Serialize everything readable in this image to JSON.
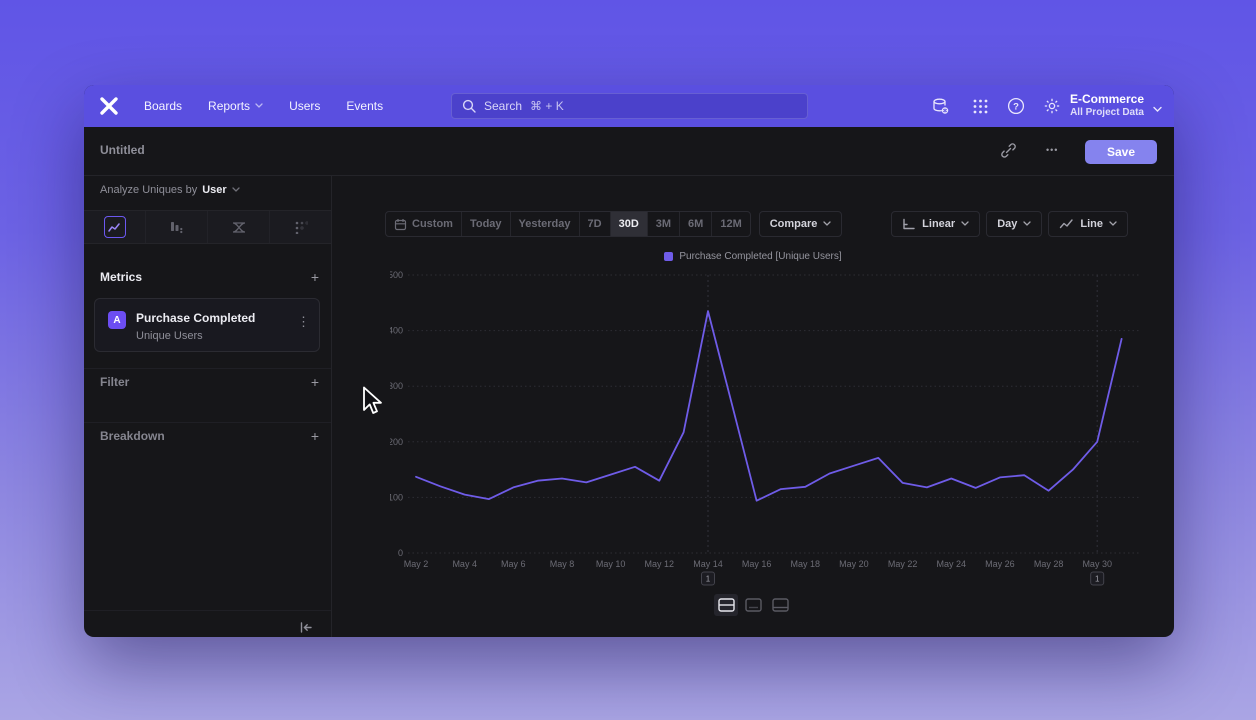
{
  "brand": {
    "nav_purple": "#5a4fe0",
    "accent": "#6f5ce8",
    "save_bg": "#8583ee"
  },
  "topnav": {
    "items": [
      {
        "label": "Boards",
        "dropdown": false
      },
      {
        "label": "Reports",
        "dropdown": true
      },
      {
        "label": "Users",
        "dropdown": false
      },
      {
        "label": "Events",
        "dropdown": false
      }
    ],
    "search_placeholder": "Search",
    "search_shortcut": "⌘ + K",
    "project_name": "E-Commerce",
    "project_scope": "All Project Data"
  },
  "header": {
    "title": "Untitled",
    "save_label": "Save",
    "more_glyph": "•••"
  },
  "sidebar": {
    "analyze_prefix": "Analyze Uniques by",
    "analyze_value": "User",
    "metrics_label": "Metrics",
    "metric_card": {
      "badge": "A",
      "title": "Purchase Completed",
      "subtitle": "Unique Users"
    },
    "filter_label": "Filter",
    "breakdown_label": "Breakdown",
    "plus_glyph": "+",
    "kebab_glyph": "⋮"
  },
  "toolbar": {
    "ranges": [
      "Custom",
      "Today",
      "Yesterday",
      "7D",
      "30D",
      "3M",
      "6M",
      "12M"
    ],
    "active_range": "30D",
    "compare_label": "Compare",
    "scale_label": "Linear",
    "interval_label": "Day",
    "chart_type_label": "Line"
  },
  "chart_data": {
    "type": "line",
    "legend": [
      "Purchase Completed [Unique Users]"
    ],
    "x": [
      "May 2",
      "May 3",
      "May 4",
      "May 5",
      "May 6",
      "May 7",
      "May 8",
      "May 9",
      "May 10",
      "May 11",
      "May 12",
      "May 13",
      "May 14",
      "May 15",
      "May 16",
      "May 17",
      "May 18",
      "May 19",
      "May 20",
      "May 21",
      "May 22",
      "May 23",
      "May 24",
      "May 25",
      "May 26",
      "May 27",
      "May 28",
      "May 29",
      "May 30",
      "May 31"
    ],
    "series": [
      {
        "name": "Purchase Completed [Unique Users]",
        "color": "#6f5ce8",
        "values": [
          137,
          120,
          105,
          97,
          118,
          130,
          134,
          127,
          141,
          155,
          130,
          217,
          435,
          265,
          94,
          115,
          119,
          143,
          157,
          171,
          126,
          118,
          134,
          117,
          136,
          140,
          112,
          150,
          200,
          385
        ]
      }
    ],
    "ylim": [
      0,
      500
    ],
    "yticks": [
      0,
      100,
      200,
      300,
      400,
      500
    ],
    "xtick_labels": [
      "May 2",
      "May 4",
      "May 6",
      "May 8",
      "May 10",
      "May 12",
      "May 14",
      "May 16",
      "May 18",
      "May 20",
      "May 22",
      "May 24",
      "May 26",
      "May 28",
      "May 30"
    ],
    "grid": "dotted-horizontal",
    "legend_position": "top-center",
    "annotations": [
      {
        "label": "1",
        "x_index": 12
      },
      {
        "label": "1",
        "x_index": 28
      }
    ]
  }
}
